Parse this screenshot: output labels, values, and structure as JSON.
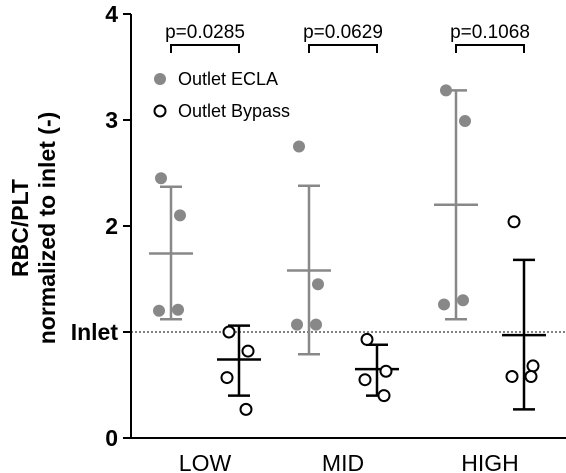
{
  "chart_data": {
    "type": "scatter",
    "ylabel_line1": "RBC/PLT",
    "ylabel_line2": "normalized to inlet (-)",
    "ylim": [
      0,
      4
    ],
    "y_ticks": [
      {
        "value": 0,
        "label": "0"
      },
      {
        "value": 1,
        "label": "Inlet"
      },
      {
        "value": 2,
        "label": "2"
      },
      {
        "value": 3,
        "label": "3"
      },
      {
        "value": 4,
        "label": "4"
      }
    ],
    "reference_line": {
      "value": 1,
      "style": "dotted"
    },
    "categories": [
      "LOW",
      "MID",
      "HIGH"
    ],
    "series": [
      {
        "name": "Outlet ECLA",
        "color": "#888888",
        "marker": "filled-circle",
        "groups": [
          {
            "points": [
              2.45,
              2.1,
              1.2,
              1.21
            ],
            "mean": 1.74,
            "sd_low": 1.12,
            "sd_high": 2.37
          },
          {
            "points": [
              2.75,
              1.45,
              1.07,
              1.07
            ],
            "mean": 1.58,
            "sd_low": 0.79,
            "sd_high": 2.38
          },
          {
            "points": [
              3.28,
              2.99,
              1.26,
              1.3
            ],
            "mean": 2.2,
            "sd_low": 1.12,
            "sd_high": 3.28
          }
        ]
      },
      {
        "name": "Outlet Bypass",
        "color": "#000000",
        "marker": "open-circle",
        "groups": [
          {
            "points": [
              1.0,
              0.82,
              0.57,
              0.27
            ],
            "mean": 0.74,
            "sd_low": 0.4,
            "sd_high": 1.06
          },
          {
            "points": [
              0.93,
              0.63,
              0.55,
              0.4
            ],
            "mean": 0.65,
            "sd_low": 0.4,
            "sd_high": 0.88
          },
          {
            "points": [
              2.04,
              0.68,
              0.58,
              0.58
            ],
            "mean": 0.97,
            "sd_low": 0.27,
            "sd_high": 1.68
          }
        ]
      }
    ],
    "annotations": [
      {
        "category": "LOW",
        "text": "p=0.0285"
      },
      {
        "category": "MID",
        "text": "p=0.0629"
      },
      {
        "category": "HIGH",
        "text": "p=0.1068"
      }
    ],
    "legend": {
      "position": "top-left"
    }
  }
}
